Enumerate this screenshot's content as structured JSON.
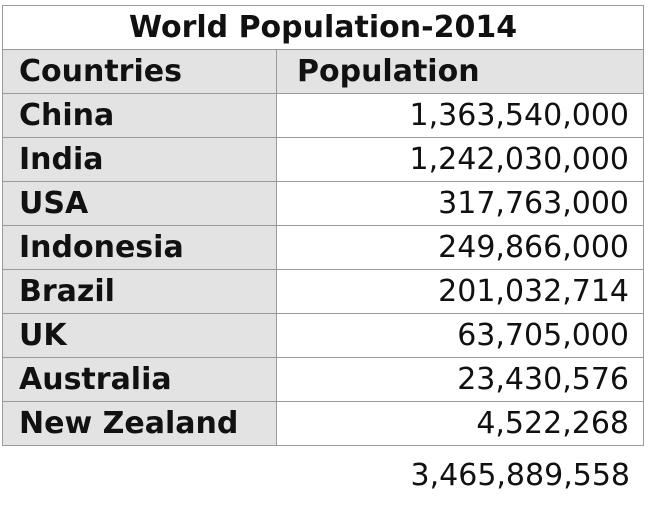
{
  "table": {
    "title": "World Population-2014",
    "headers": [
      "Countries",
      "Population"
    ],
    "rows": [
      {
        "country": "China",
        "population": "1,363,540,000"
      },
      {
        "country": "India",
        "population": "1,242,030,000"
      },
      {
        "country": "USA",
        "population": "317,763,000"
      },
      {
        "country": "Indonesia",
        "population": "249,866,000"
      },
      {
        "country": "Brazil",
        "population": "201,032,714"
      },
      {
        "country": "UK",
        "population": "63,705,000"
      },
      {
        "country": "Australia",
        "population": "23,430,576"
      },
      {
        "country": "New Zealand",
        "population": "4,522,268"
      }
    ],
    "total": "3,465,889,558"
  }
}
